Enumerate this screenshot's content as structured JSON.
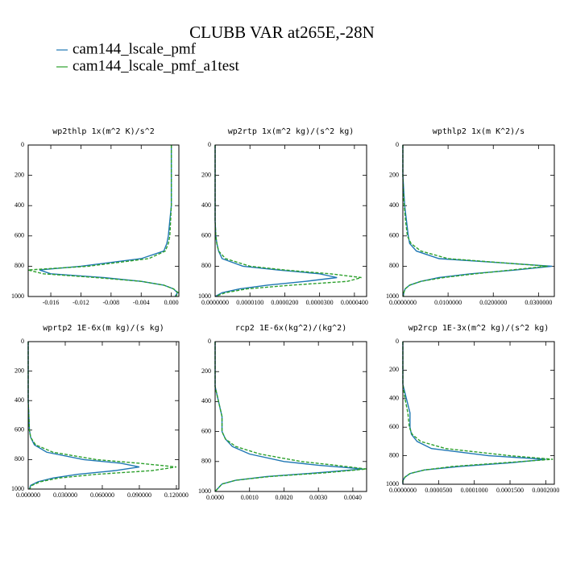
{
  "title": "CLUBB VAR at265E,-28N",
  "chart_data": [
    {
      "type": "line",
      "title": "wp2thlp   1x(m^2 K)/s^2",
      "y": [
        0,
        100,
        200,
        300,
        400,
        500,
        600,
        650,
        700,
        750,
        800,
        825,
        850,
        875,
        900,
        925,
        950,
        975,
        1000
      ],
      "ylim": [
        1000,
        0
      ],
      "yticks": [
        0,
        200,
        400,
        600,
        800,
        1000
      ],
      "xlim": [
        -0.019,
        0.001
      ],
      "xticks": [
        -0.016,
        -0.012,
        -0.008,
        -0.004,
        {
          "value": 0,
          "label": "0.000"
        }
      ],
      "series": [
        {
          "name": "cam144_lscale_pmf",
          "color": "#1f77b4",
          "linestyle": "solid",
          "values": [
            0,
            0,
            0,
            0,
            0,
            -0.0002,
            -0.0004,
            -0.0006,
            -0.001,
            -0.004,
            -0.012,
            -0.0175,
            -0.016,
            -0.009,
            -0.004,
            -0.001,
            0.0003,
            0.0008,
            0.0005
          ]
        },
        {
          "name": "cam144_lscale_pmf_a1test",
          "color": "#2ca02c",
          "linestyle": "dashed",
          "values": [
            0,
            0,
            0,
            0,
            0,
            -0.0001,
            -0.0002,
            -0.0004,
            -0.0008,
            -0.003,
            -0.011,
            -0.019,
            -0.017,
            -0.01,
            -0.004,
            -0.001,
            0.0003,
            0.0009,
            0.0006
          ]
        }
      ]
    },
    {
      "type": "line",
      "title": "wp2rtp   1x(m^2 kg)/(s^2 kg)",
      "y": [
        0,
        100,
        200,
        300,
        400,
        500,
        600,
        650,
        700,
        750,
        800,
        825,
        850,
        875,
        900,
        925,
        950,
        975,
        1000
      ],
      "ylim": [
        1000,
        0
      ],
      "yticks": [
        0,
        200,
        400,
        600,
        800,
        1000
      ],
      "xlim": [
        0,
        4.35e-05
      ],
      "xticks": [
        {
          "value": 0,
          "label": "0.0000000"
        },
        {
          "value": 1e-05,
          "label": "0.0000100"
        },
        {
          "value": 2e-05,
          "label": "0.0000200"
        },
        {
          "value": 3e-05,
          "label": "0.0000300"
        },
        {
          "value": 4e-05,
          "label": "0.0000400"
        }
      ],
      "series": [
        {
          "name": "cam144_lscale_pmf",
          "color": "#1f77b4",
          "linestyle": "solid",
          "values": [
            0,
            0,
            0,
            0,
            0,
            0,
            2e-07,
            5e-07,
            1e-06,
            2e-06,
            8e-06,
            1.8e-05,
            3e-05,
            3.5e-05,
            2.6e-05,
            1.5e-05,
            7e-06,
            2e-06,
            0
          ]
        },
        {
          "name": "cam144_lscale_pmf_a1test",
          "color": "#2ca02c",
          "linestyle": "dashed",
          "values": [
            0,
            0,
            0,
            0,
            0,
            0,
            2e-07,
            5e-07,
            1e-06,
            3e-06,
            1e-05,
            2e-05,
            3.3e-05,
            4.2e-05,
            3.8e-05,
            2.2e-05,
            9e-06,
            3e-06,
            0
          ]
        }
      ]
    },
    {
      "type": "line",
      "title": "wpthlp2   1x(m K^2)/s",
      "y": [
        0,
        100,
        200,
        300,
        400,
        500,
        600,
        650,
        700,
        750,
        800,
        825,
        850,
        875,
        900,
        925,
        950,
        975,
        1000
      ],
      "ylim": [
        1000,
        0
      ],
      "yticks": [
        0,
        200,
        400,
        600,
        800,
        1000
      ],
      "xlim": [
        0,
        0.0335
      ],
      "xticks": [
        {
          "value": 0,
          "label": "0.0000000"
        },
        {
          "value": 0.01,
          "label": "0.0100000"
        },
        {
          "value": 0.02,
          "label": "0.0200000"
        },
        {
          "value": 0.03,
          "label": "0.0300000"
        }
      ],
      "series": [
        {
          "name": "cam144_lscale_pmf",
          "color": "#1f77b4",
          "linestyle": "solid",
          "values": [
            0,
            0,
            0,
            0.0002,
            0.0004,
            0.0008,
            0.0012,
            0.0015,
            0.003,
            0.008,
            0.033,
            0.025,
            0.015,
            0.008,
            0.004,
            0.0015,
            0.0005,
            0.0002,
            0.0001
          ]
        },
        {
          "name": "cam144_lscale_pmf_a1test",
          "color": "#2ca02c",
          "linestyle": "dashed",
          "values": [
            0,
            0,
            0,
            0.0001,
            0.0003,
            0.0006,
            0.001,
            0.0018,
            0.004,
            0.01,
            0.032,
            0.024,
            0.016,
            0.009,
            0.004,
            0.0015,
            0.0005,
            0.0002,
            0.0001
          ]
        }
      ]
    },
    {
      "type": "line",
      "title": "wprtp2   1E-6x(m kg)/(s kg)",
      "y": [
        0,
        100,
        200,
        300,
        400,
        500,
        600,
        650,
        700,
        750,
        800,
        825,
        850,
        875,
        900,
        925,
        950,
        975,
        1000
      ],
      "ylim": [
        1000,
        0
      ],
      "yticks": [
        0,
        200,
        400,
        600,
        800,
        1000
      ],
      "xlim": [
        0,
        0.122
      ],
      "xticks": [
        {
          "value": 0,
          "label": "0.000000"
        },
        {
          "value": 0.03,
          "label": "0.030000"
        },
        {
          "value": 0.06,
          "label": "0.060000"
        },
        {
          "value": 0.09,
          "label": "0.090000"
        },
        {
          "value": 0.12,
          "label": "0.120000"
        }
      ],
      "series": [
        {
          "name": "cam144_lscale_pmf",
          "color": "#1f77b4",
          "linestyle": "solid",
          "values": [
            0,
            0,
            0,
            0,
            0,
            0.0005,
            0.001,
            0.002,
            0.005,
            0.015,
            0.045,
            0.075,
            0.09,
            0.07,
            0.04,
            0.02,
            0.008,
            0.002,
            0.001
          ]
        },
        {
          "name": "cam144_lscale_pmf_a1test",
          "color": "#2ca02c",
          "linestyle": "dashed",
          "values": [
            0,
            0,
            0,
            0,
            0,
            0.0005,
            0.001,
            0.002,
            0.006,
            0.02,
            0.055,
            0.09,
            0.12,
            0.1,
            0.055,
            0.025,
            0.01,
            0.003,
            0.001
          ]
        }
      ]
    },
    {
      "type": "line",
      "title": "rcp2   1E-6x(kg^2)/(kg^2)",
      "y": [
        0,
        100,
        200,
        300,
        400,
        500,
        600,
        650,
        700,
        750,
        800,
        825,
        850,
        875,
        900,
        925,
        950,
        975,
        1000
      ],
      "ylim": [
        1000,
        0
      ],
      "yticks": [
        0,
        200,
        400,
        600,
        800,
        1000
      ],
      "xlim": [
        0,
        0.0044
      ],
      "xticks": [
        {
          "value": 0,
          "label": "0.0000"
        },
        {
          "value": 0.001,
          "label": "0.0010"
        },
        {
          "value": 0.002,
          "label": "0.0020"
        },
        {
          "value": 0.003,
          "label": "0.0030"
        },
        {
          "value": 0.004,
          "label": "0.0040"
        }
      ],
      "series": [
        {
          "name": "cam144_lscale_pmf",
          "color": "#1f77b4",
          "linestyle": "solid",
          "values": [
            0,
            0,
            0,
            0,
            0.0001,
            0.0002,
            0.0002,
            0.0003,
            0.0005,
            0.001,
            0.002,
            0.003,
            0.0043,
            0.003,
            0.0015,
            0.0006,
            0.0002,
            0.0001,
            0
          ]
        },
        {
          "name": "cam144_lscale_pmf_a1test",
          "color": "#2ca02c",
          "linestyle": "dashed",
          "values": [
            0,
            0,
            0,
            0,
            0.0001,
            0.0002,
            0.0002,
            0.0003,
            0.0006,
            0.0013,
            0.0025,
            0.0035,
            0.0044,
            0.0032,
            0.0016,
            0.0006,
            0.0002,
            0.0001,
            0
          ]
        }
      ]
    },
    {
      "type": "line",
      "title": "wp2rcp   1E-3x(m^2 kg)/(s^2 kg)",
      "y": [
        0,
        100,
        200,
        300,
        400,
        500,
        600,
        650,
        700,
        750,
        800,
        825,
        850,
        875,
        900,
        925,
        950,
        975,
        1000
      ],
      "ylim": [
        1000,
        0
      ],
      "yticks": [
        0,
        200,
        400,
        600,
        800,
        1000
      ],
      "xlim": [
        0,
        0.000212
      ],
      "xticks": [
        {
          "value": 0,
          "label": "0.0000000"
        },
        {
          "value": 5e-05,
          "label": "0.0000500"
        },
        {
          "value": 0.0001,
          "label": "0.0001000"
        },
        {
          "value": 0.00015,
          "label": "0.0001500"
        },
        {
          "value": 0.0002,
          "label": "0.0002000"
        }
      ],
      "series": [
        {
          "name": "cam144_lscale_pmf",
          "color": "#1f77b4",
          "linestyle": "solid",
          "values": [
            0,
            0,
            0,
            0,
            5e-06,
            1e-05,
            1e-05,
            1.2e-05,
            2e-05,
            4e-05,
            0.00012,
            0.0002,
            0.00015,
            8e-05,
            3e-05,
            1e-05,
            3e-06,
            0,
            0
          ]
        },
        {
          "name": "cam144_lscale_pmf_a1test",
          "color": "#2ca02c",
          "linestyle": "dashed",
          "values": [
            0,
            0,
            0,
            0,
            3e-06,
            7e-06,
            9e-06,
            1.3e-05,
            2.5e-05,
            6e-05,
            0.00015,
            0.00021,
            0.00014,
            7e-05,
            3e-05,
            1e-05,
            3e-06,
            0,
            0
          ]
        }
      ]
    }
  ]
}
